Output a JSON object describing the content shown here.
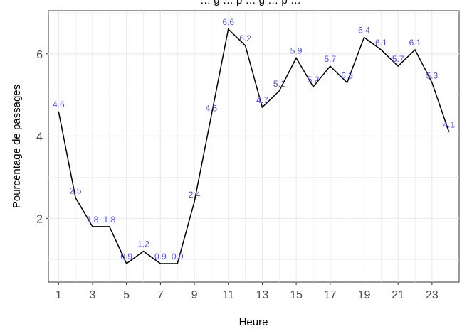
{
  "chart_data": {
    "type": "line",
    "title": "… g … p … g … p …",
    "xlabel": "Heure",
    "ylabel": "Pourcentage de passages",
    "x": [
      1,
      2,
      3,
      4,
      5,
      6,
      7,
      8,
      9,
      10,
      11,
      12,
      13,
      14,
      15,
      16,
      17,
      18,
      19,
      20,
      21,
      22,
      23,
      24
    ],
    "series": [
      {
        "values": [
          4.6,
          2.5,
          1.8,
          1.8,
          0.9,
          1.2,
          0.9,
          0.9,
          2.4,
          4.5,
          6.6,
          6.2,
          4.7,
          5.1,
          5.9,
          5.2,
          5.7,
          5.3,
          6.4,
          6.1,
          5.7,
          6.1,
          5.3,
          4.1
        ],
        "data_labels": [
          "4.6",
          "2.5",
          "1.8",
          "1.8",
          "0.9",
          "1.2",
          "0.9",
          "0.9",
          "2.4",
          "4.5",
          "6.6",
          "6.2",
          "4.7",
          "5.1",
          "5.9",
          "5.2",
          "5.7",
          "5.3",
          "6.4",
          "6.1",
          "5.7",
          "6.1",
          "5.3",
          "4.1"
        ],
        "line_color": "#000000"
      }
    ],
    "x_ticks": [
      "1",
      "3",
      "5",
      "7",
      "9",
      "11",
      "13",
      "15",
      "17",
      "19",
      "21",
      "23"
    ],
    "y_ticks": [
      "2",
      "4",
      "6"
    ],
    "xlim": [
      0.4,
      24.6
    ],
    "ylim": [
      0.45,
      7.05
    ],
    "grid": true,
    "colors": {
      "label": "#4d4dff",
      "grid": "#ebebeb",
      "line": "#000000"
    }
  }
}
